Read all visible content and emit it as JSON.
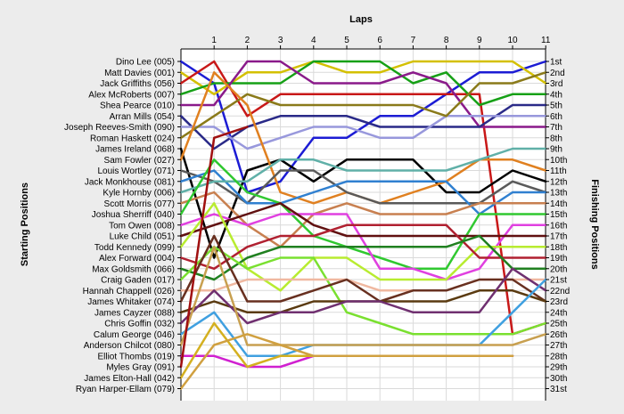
{
  "chart_data": {
    "type": "line",
    "xlabel": "Laps",
    "ylabel_left": "Starting Positions",
    "ylabel_right": "Finishing Positions",
    "laps": [
      1,
      2,
      3,
      4,
      5,
      6,
      7,
      8,
      9,
      10,
      11
    ],
    "grid": true,
    "starting_order": [
      "Dino Lee (005)",
      "Matt Davies (001)",
      "Jack Griffiths (056)",
      "Alex McRoberts (007)",
      "Shea Pearce (010)",
      "Arran Mills (054)",
      "Joseph Reeves-Smith (090)",
      "Roman Haskett (024)",
      "James Ireland (068)",
      "Sam Fowler (027)",
      "Louis Wortley (071)",
      "Jack Monkhouse (081)",
      "Kyle Hornby (006)",
      "Scott Morris (077)",
      "Joshua Sherriff (040)",
      "Tom Owen (008)",
      "Luke Child (051)",
      "Todd Kennedy (099)",
      "Alex Forward (004)",
      "Max Goldsmith (066)",
      "Craig Gaden (017)",
      "Hannah Chappell (026)",
      "James Whitaker (074)",
      "James Cayzer (088)",
      "Chris Goffin (032)",
      "Calum George (046)",
      "Anderson Chilcot (080)",
      "Elliot Thombs (019)",
      "Myles Gray (091)",
      "James Elton-Hall (042)",
      "Ryan Harper-Ellam (079)"
    ],
    "finishing_labels": [
      "1st",
      "2nd",
      "3rd",
      "4th",
      "5th",
      "6th",
      "7th",
      "8th",
      "9th",
      "10th",
      "11th",
      "12th",
      "13th",
      "14th",
      "15th",
      "16th",
      "17th",
      "18th",
      "19th",
      "20th",
      "21st",
      "22nd",
      "23rd",
      "24th",
      "25th",
      "26th",
      "27th",
      "28th",
      "29th",
      "30th",
      "31st"
    ],
    "series": [
      {
        "color": "#1c1cd4",
        "positions": [
          3,
          13,
          12,
          8,
          8,
          6,
          6,
          4,
          2,
          2,
          1
        ]
      },
      {
        "color": "#d4c000",
        "positions": [
          4,
          2,
          2,
          1,
          2,
          2,
          1,
          1,
          1,
          1,
          3
        ]
      },
      {
        "color": "#c81818",
        "positions": [
          1,
          6,
          4,
          4,
          4,
          4,
          4,
          4,
          4,
          26,
          25
        ]
      },
      {
        "color": "#16a016",
        "positions": [
          3,
          3,
          3,
          1,
          1,
          1,
          3,
          2,
          5,
          4,
          4
        ]
      },
      {
        "color": "#8a1a8a",
        "positions": [
          5,
          1,
          1,
          3,
          3,
          3,
          2,
          3,
          7,
          7,
          7
        ]
      },
      {
        "color": "#2a2a88",
        "positions": [
          9,
          7,
          6,
          6,
          6,
          7,
          7,
          7,
          7,
          5,
          5
        ]
      },
      {
        "color": "#9898dc",
        "positions": [
          7,
          9,
          8,
          7,
          7,
          8,
          8,
          6,
          6,
          6,
          6
        ]
      },
      {
        "color": "#8a7a1a",
        "positions": [
          6,
          4,
          5,
          5,
          5,
          5,
          5,
          6,
          3,
          3,
          2
        ]
      },
      {
        "color": "#000000",
        "positions": [
          19,
          11,
          10,
          12,
          10,
          10,
          10,
          13,
          13,
          11,
          12
        ]
      },
      {
        "color": "#e08020",
        "positions": [
          2,
          5,
          13,
          14,
          13,
          14,
          13,
          12,
          10,
          10,
          11
        ]
      },
      {
        "color": "#5a5a5a",
        "positions": [
          12,
          14,
          11,
          11,
          13,
          14,
          14,
          14,
          14,
          12,
          13
        ]
      },
      {
        "color": "#3080d0",
        "positions": [
          11,
          14,
          14,
          13,
          12,
          12,
          12,
          12,
          15,
          13,
          13
        ]
      },
      {
        "color": "#60b0a8",
        "positions": [
          12,
          12,
          10,
          10,
          11,
          11,
          11,
          11,
          10,
          9,
          9
        ]
      },
      {
        "color": "#c88050",
        "positions": [
          13,
          16,
          18,
          15,
          14,
          15,
          15,
          15,
          14,
          14,
          14
        ]
      },
      {
        "color": "#30c830",
        "positions": [
          10,
          13,
          14,
          17,
          18,
          19,
          20,
          20,
          15,
          15,
          15
        ]
      },
      {
        "color": "#e040e0",
        "positions": [
          15,
          16,
          15,
          15,
          15,
          20,
          20,
          21,
          20,
          16,
          16
        ]
      },
      {
        "color": "#601010",
        "positions": [
          16,
          15,
          14,
          16,
          17,
          17,
          17,
          17,
          17,
          17,
          17
        ]
      },
      {
        "color": "#b8ec30",
        "positions": [
          14,
          20,
          22,
          19,
          19,
          21,
          21,
          21,
          18,
          18,
          18
        ]
      },
      {
        "color": "#b02030",
        "positions": [
          20,
          18,
          17,
          17,
          16,
          16,
          16,
          16,
          19,
          19,
          19
        ]
      },
      {
        "color": "#208020",
        "positions": [
          21,
          19,
          18,
          18,
          18,
          18,
          18,
          18,
          17,
          20,
          20
        ]
      },
      {
        "color": "#7ae030",
        "positions": [
          18,
          20,
          19,
          19,
          24,
          25,
          26,
          26,
          26,
          26,
          25
        ]
      },
      {
        "color": "#f0b8a0",
        "positions": [
          22,
          21,
          21,
          21,
          21,
          22,
          22,
          22,
          21,
          21,
          21
        ]
      },
      {
        "color": "#683020",
        "positions": [
          17,
          23,
          23,
          22,
          21,
          23,
          22,
          22,
          21,
          21,
          23
        ]
      },
      {
        "color": "#5a3a10",
        "positions": [
          23,
          24,
          24,
          23,
          23,
          23,
          23,
          23,
          22,
          22,
          23
        ]
      },
      {
        "color": "#703070",
        "positions": [
          22,
          25,
          24,
          24,
          23,
          23,
          24,
          24,
          24,
          20,
          22
        ]
      },
      {
        "color": "#40a0e0",
        "positions": [
          24,
          28,
          28,
          27,
          27,
          27,
          27,
          27,
          27,
          24,
          21
        ]
      },
      {
        "color": "#c8a050",
        "positions": [
          18,
          27,
          27,
          27,
          27,
          27,
          27,
          27,
          27,
          27,
          26
        ]
      },
      {
        "color": "#d020d0",
        "positions": [
          28,
          29,
          29,
          28,
          28,
          28,
          28,
          28,
          28,
          28,
          null
        ]
      },
      {
        "color": "#a01010",
        "positions": [
          8,
          7,
          null,
          null,
          null,
          null,
          null,
          null,
          null,
          null,
          null
        ]
      },
      {
        "color": "#d4b020",
        "positions": [
          25,
          29,
          28,
          28,
          28,
          28,
          28,
          28,
          28,
          28,
          null
        ]
      },
      {
        "color": "#d0a040",
        "positions": [
          27,
          26,
          27,
          28,
          28,
          28,
          28,
          28,
          28,
          28,
          null
        ]
      }
    ]
  }
}
